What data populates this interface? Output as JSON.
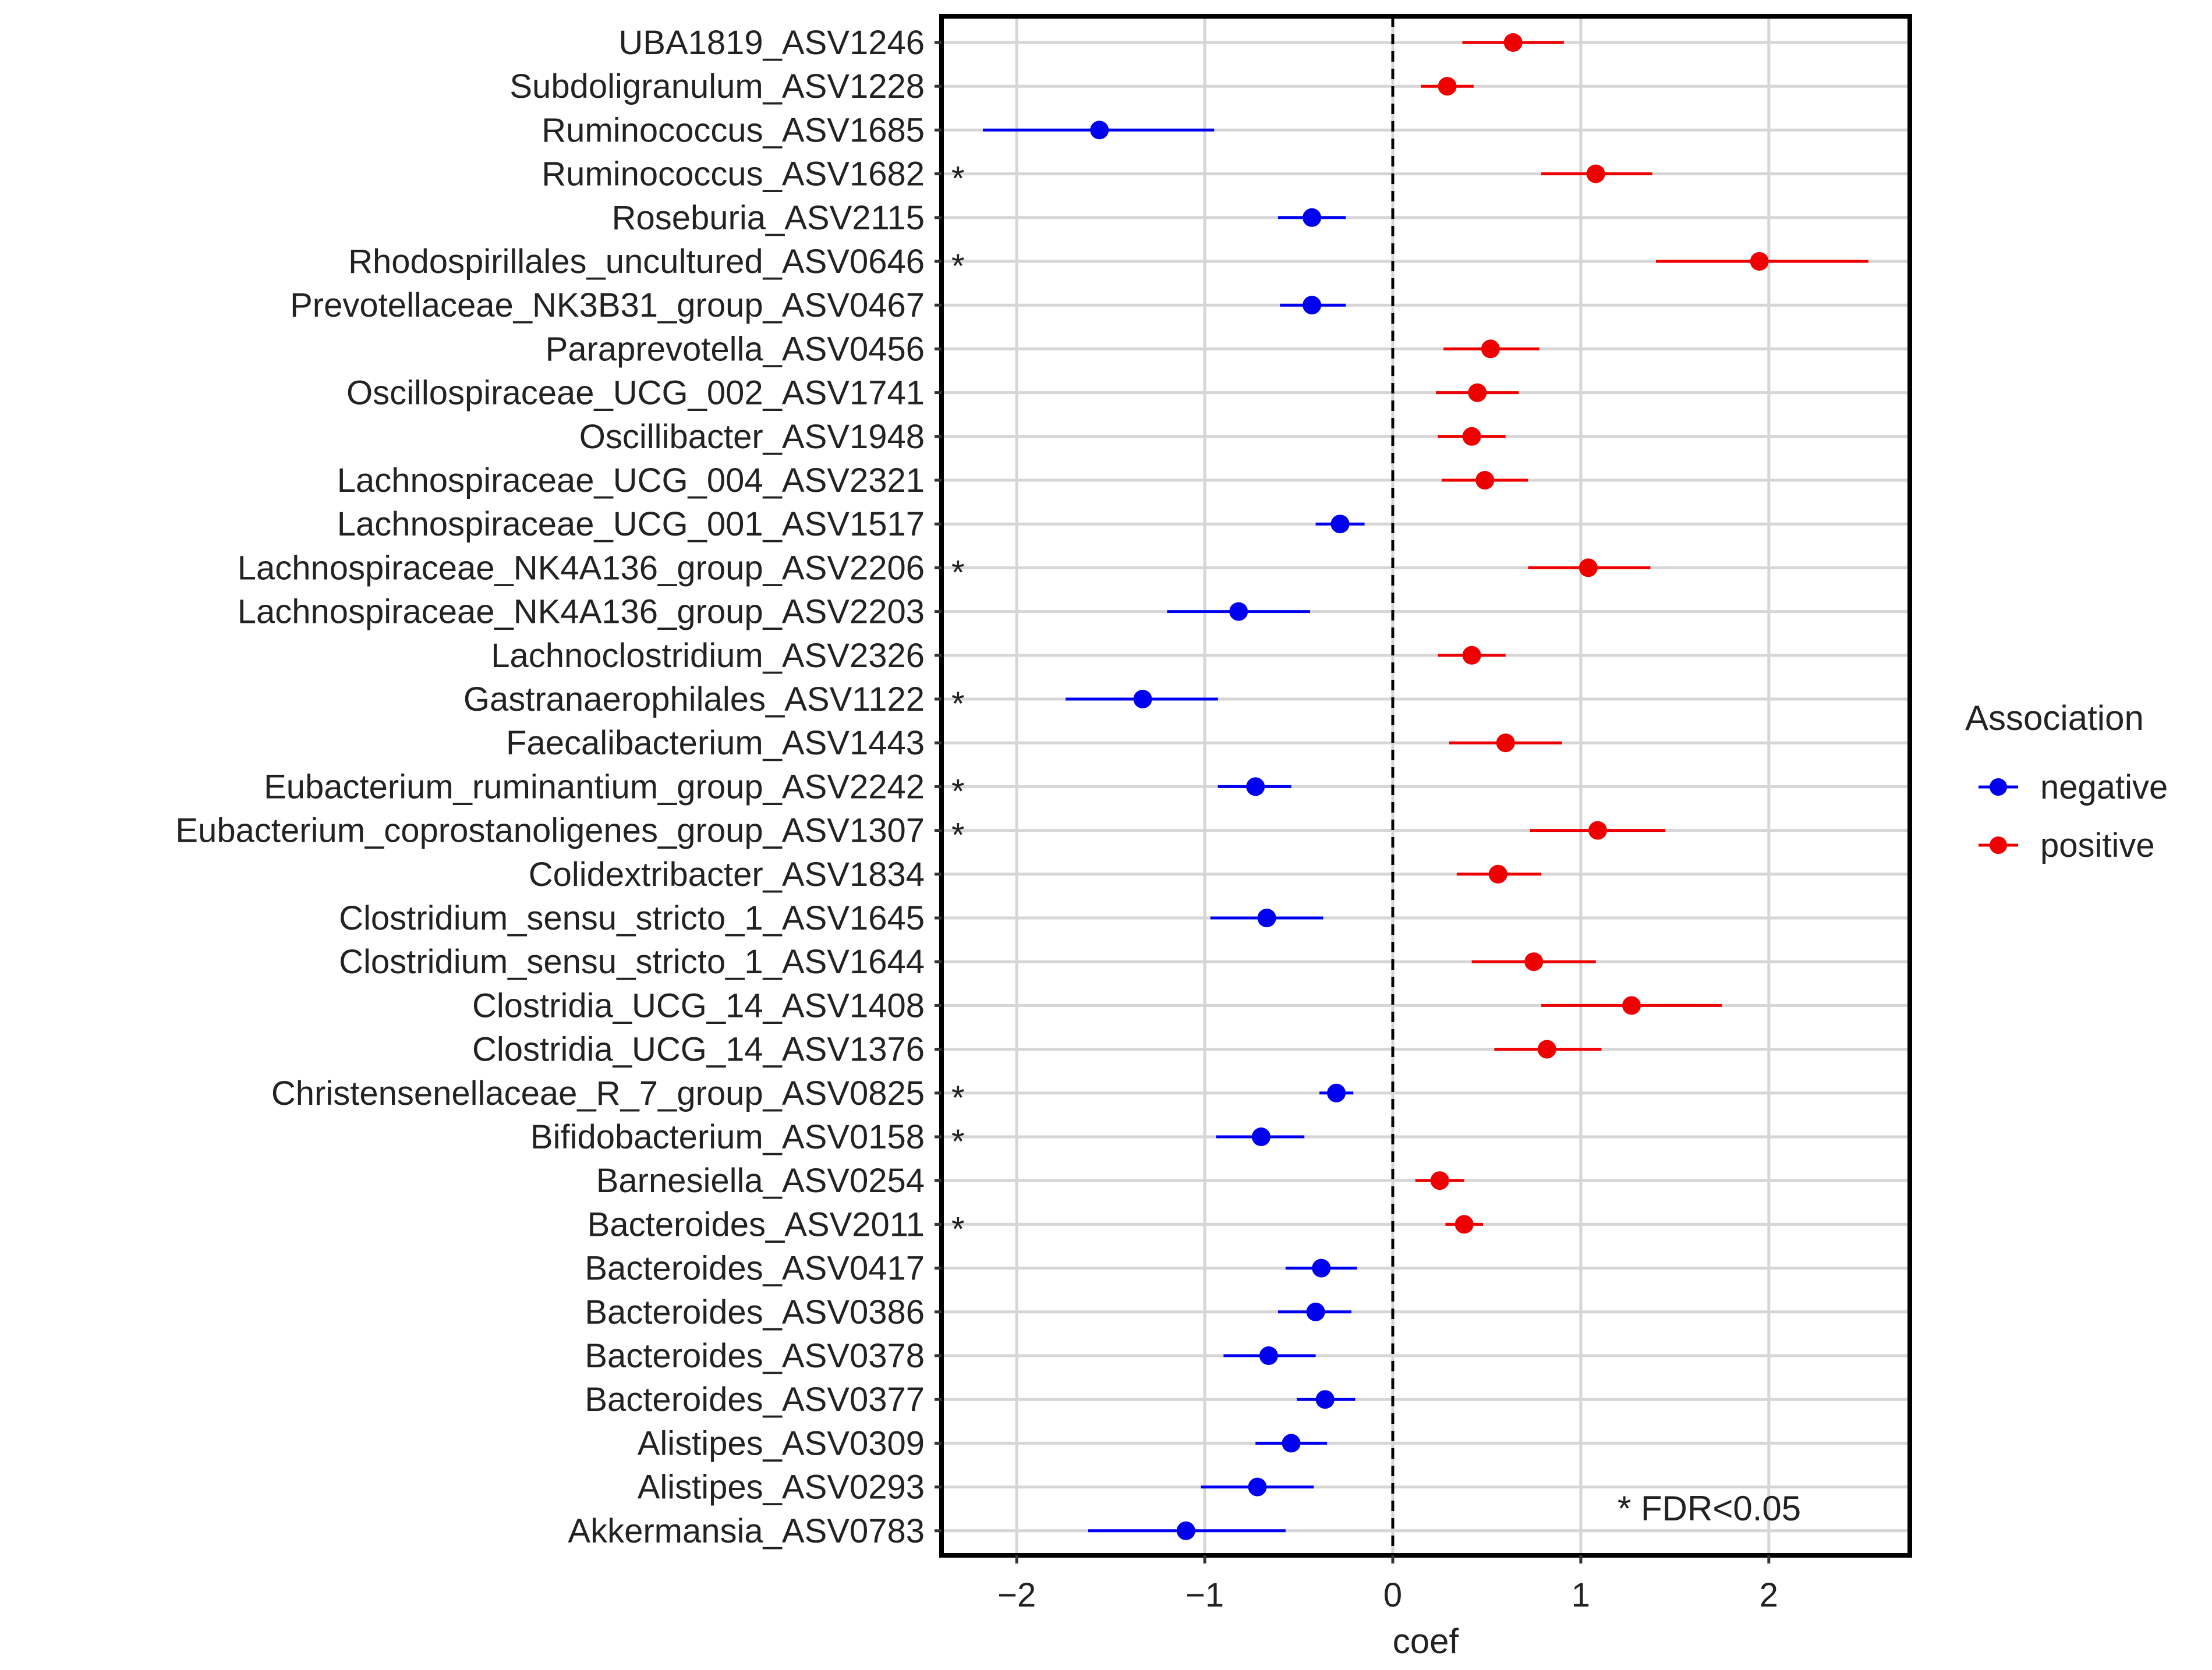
{
  "chart_data": {
    "type": "forest",
    "title": "",
    "xlabel": "coef",
    "ylabel": "",
    "xlim": [
      -2.4,
      2.75
    ],
    "xticks": [
      -2,
      -1,
      0,
      1,
      2
    ],
    "xtick_labels": [
      "−2",
      "−1",
      "0",
      "1",
      "2"
    ],
    "reference_line": 0,
    "grid": true,
    "legend": {
      "title": "Association",
      "placement": "right",
      "entries": [
        {
          "name": "negative",
          "color": "#0000ee"
        },
        {
          "name": "positive",
          "color": "#ee0000"
        }
      ]
    },
    "annotation": "* FDR<0.05",
    "significance_marker": "*",
    "rows": [
      {
        "label": "UBA1819_ASV1246",
        "coef": 0.64,
        "low": 0.37,
        "high": 0.91,
        "association": "positive",
        "sig": false
      },
      {
        "label": "Subdoligranulum_ASV1228",
        "coef": 0.29,
        "low": 0.15,
        "high": 0.43,
        "association": "positive",
        "sig": false
      },
      {
        "label": "Ruminococcus_ASV1685",
        "coef": -1.56,
        "low": -2.18,
        "high": -0.95,
        "association": "negative",
        "sig": false
      },
      {
        "label": "Ruminococcus_ASV1682",
        "coef": 1.08,
        "low": 0.79,
        "high": 1.38,
        "association": "positive",
        "sig": true
      },
      {
        "label": "Roseburia_ASV2115",
        "coef": -0.43,
        "low": -0.61,
        "high": -0.25,
        "association": "negative",
        "sig": false
      },
      {
        "label": "Rhodospirillales_uncultured_ASV0646",
        "coef": 1.95,
        "low": 1.4,
        "high": 2.53,
        "association": "positive",
        "sig": true
      },
      {
        "label": "Prevotellaceae_NK3B31_group_ASV0467",
        "coef": -0.43,
        "low": -0.6,
        "high": -0.25,
        "association": "negative",
        "sig": false
      },
      {
        "label": "Paraprevotella_ASV0456",
        "coef": 0.52,
        "low": 0.27,
        "high": 0.78,
        "association": "positive",
        "sig": false
      },
      {
        "label": "Oscillospiraceae_UCG_002_ASV1741",
        "coef": 0.45,
        "low": 0.23,
        "high": 0.67,
        "association": "positive",
        "sig": false
      },
      {
        "label": "Oscillibacter_ASV1948",
        "coef": 0.42,
        "low": 0.24,
        "high": 0.6,
        "association": "positive",
        "sig": false
      },
      {
        "label": "Lachnospiraceae_UCG_004_ASV2321",
        "coef": 0.49,
        "low": 0.26,
        "high": 0.72,
        "association": "positive",
        "sig": false
      },
      {
        "label": "Lachnospiraceae_UCG_001_ASV1517",
        "coef": -0.28,
        "low": -0.41,
        "high": -0.15,
        "association": "negative",
        "sig": false
      },
      {
        "label": "Lachnospiraceae_NK4A136_group_ASV2206",
        "coef": 1.04,
        "low": 0.72,
        "high": 1.37,
        "association": "positive",
        "sig": true
      },
      {
        "label": "Lachnospiraceae_NK4A136_group_ASV2203",
        "coef": -0.82,
        "low": -1.2,
        "high": -0.44,
        "association": "negative",
        "sig": false
      },
      {
        "label": "Lachnoclostridium_ASV2326",
        "coef": 0.42,
        "low": 0.24,
        "high": 0.6,
        "association": "positive",
        "sig": false
      },
      {
        "label": "Gastranaerophilales_ASV1122",
        "coef": -1.33,
        "low": -1.74,
        "high": -0.93,
        "association": "negative",
        "sig": true
      },
      {
        "label": "Faecalibacterium_ASV1443",
        "coef": 0.6,
        "low": 0.3,
        "high": 0.9,
        "association": "positive",
        "sig": false
      },
      {
        "label": "Eubacterium_ruminantium_group_ASV2242",
        "coef": -0.73,
        "low": -0.93,
        "high": -0.54,
        "association": "negative",
        "sig": true
      },
      {
        "label": "Eubacterium_coprostanoligenes_group_ASV1307",
        "coef": 1.09,
        "low": 0.73,
        "high": 1.45,
        "association": "positive",
        "sig": true
      },
      {
        "label": "Colidextribacter_ASV1834",
        "coef": 0.56,
        "low": 0.34,
        "high": 0.79,
        "association": "positive",
        "sig": false
      },
      {
        "label": "Clostridium_sensu_stricto_1_ASV1645",
        "coef": -0.67,
        "low": -0.97,
        "high": -0.37,
        "association": "negative",
        "sig": false
      },
      {
        "label": "Clostridium_sensu_stricto_1_ASV1644",
        "coef": 0.75,
        "low": 0.42,
        "high": 1.08,
        "association": "positive",
        "sig": false
      },
      {
        "label": "Clostridia_UCG_14_ASV1408",
        "coef": 1.27,
        "low": 0.79,
        "high": 1.75,
        "association": "positive",
        "sig": false
      },
      {
        "label": "Clostridia_UCG_14_ASV1376",
        "coef": 0.82,
        "low": 0.54,
        "high": 1.11,
        "association": "positive",
        "sig": false
      },
      {
        "label": "Christensenellaceae_R_7_group_ASV0825",
        "coef": -0.3,
        "low": -0.39,
        "high": -0.21,
        "association": "negative",
        "sig": true
      },
      {
        "label": "Bifidobacterium_ASV0158",
        "coef": -0.7,
        "low": -0.94,
        "high": -0.47,
        "association": "negative",
        "sig": true
      },
      {
        "label": "Barnesiella_ASV0254",
        "coef": 0.25,
        "low": 0.12,
        "high": 0.38,
        "association": "positive",
        "sig": false
      },
      {
        "label": "Bacteroides_ASV2011",
        "coef": 0.38,
        "low": 0.28,
        "high": 0.48,
        "association": "positive",
        "sig": true
      },
      {
        "label": "Bacteroides_ASV0417",
        "coef": -0.38,
        "low": -0.57,
        "high": -0.19,
        "association": "negative",
        "sig": false
      },
      {
        "label": "Bacteroides_ASV0386",
        "coef": -0.41,
        "low": -0.61,
        "high": -0.22,
        "association": "negative",
        "sig": false
      },
      {
        "label": "Bacteroides_ASV0378",
        "coef": -0.66,
        "low": -0.9,
        "high": -0.41,
        "association": "negative",
        "sig": false
      },
      {
        "label": "Bacteroides_ASV0377",
        "coef": -0.36,
        "low": -0.51,
        "high": -0.2,
        "association": "negative",
        "sig": false
      },
      {
        "label": "Alistipes_ASV0309",
        "coef": -0.54,
        "low": -0.73,
        "high": -0.35,
        "association": "negative",
        "sig": false
      },
      {
        "label": "Alistipes_ASV0293",
        "coef": -0.72,
        "low": -1.02,
        "high": -0.42,
        "association": "negative",
        "sig": false
      },
      {
        "label": "Akkermansia_ASV0783",
        "coef": -1.1,
        "low": -1.62,
        "high": -0.57,
        "association": "negative",
        "sig": false
      }
    ]
  }
}
